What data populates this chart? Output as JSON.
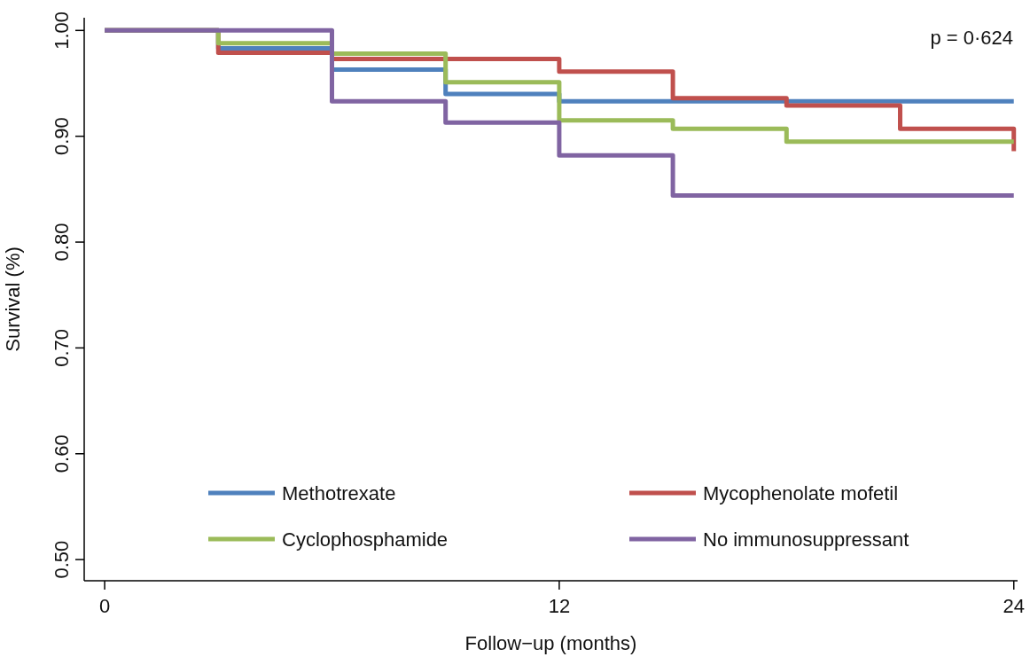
{
  "chart_data": {
    "type": "step",
    "xlabel": "Follow−up (months)",
    "ylabel": "Survival (%)",
    "x": [
      0,
      3,
      6,
      9,
      12,
      15,
      18,
      21,
      24
    ],
    "series": [
      {
        "name": "Methotrexate",
        "color": "#4f81bd",
        "values": [
          1,
          0.983,
          0.963,
          0.94,
          0.933,
          0.933,
          0.933,
          0.933,
          0.933
        ]
      },
      {
        "name": "Mycophenolate mofetil",
        "color": "#c0504d",
        "values": [
          1,
          0.979,
          0.973,
          0.973,
          0.961,
          0.936,
          0.929,
          0.907,
          0.886
        ]
      },
      {
        "name": "Cyclophosphamide",
        "color": "#9bbb59",
        "values": [
          1,
          0.988,
          0.978,
          0.951,
          0.915,
          0.907,
          0.895,
          0.895,
          0.895
        ]
      },
      {
        "name": "No immunosuppressant",
        "color": "#8064a2",
        "values": [
          1,
          1,
          0.933,
          0.913,
          0.882,
          0.844,
          0.844,
          0.844,
          0.844
        ]
      }
    ],
    "xlim": [
      -0.54,
      24.1
    ],
    "xticks": [
      0,
      12,
      24
    ],
    "ylim": [
      0.48,
      1.012
    ],
    "yticks": [
      {
        "value": 0.5,
        "label": "0.50"
      },
      {
        "value": 0.6,
        "label": "0.60"
      },
      {
        "value": 0.7,
        "label": "0.70"
      },
      {
        "value": 0.8,
        "label": "0.80"
      },
      {
        "value": 0.9,
        "label": "0.90"
      },
      {
        "value": 1,
        "label": "1.00"
      }
    ],
    "annotations": [
      "p = 0·624"
    ],
    "legend": "bottom",
    "grid": false
  }
}
